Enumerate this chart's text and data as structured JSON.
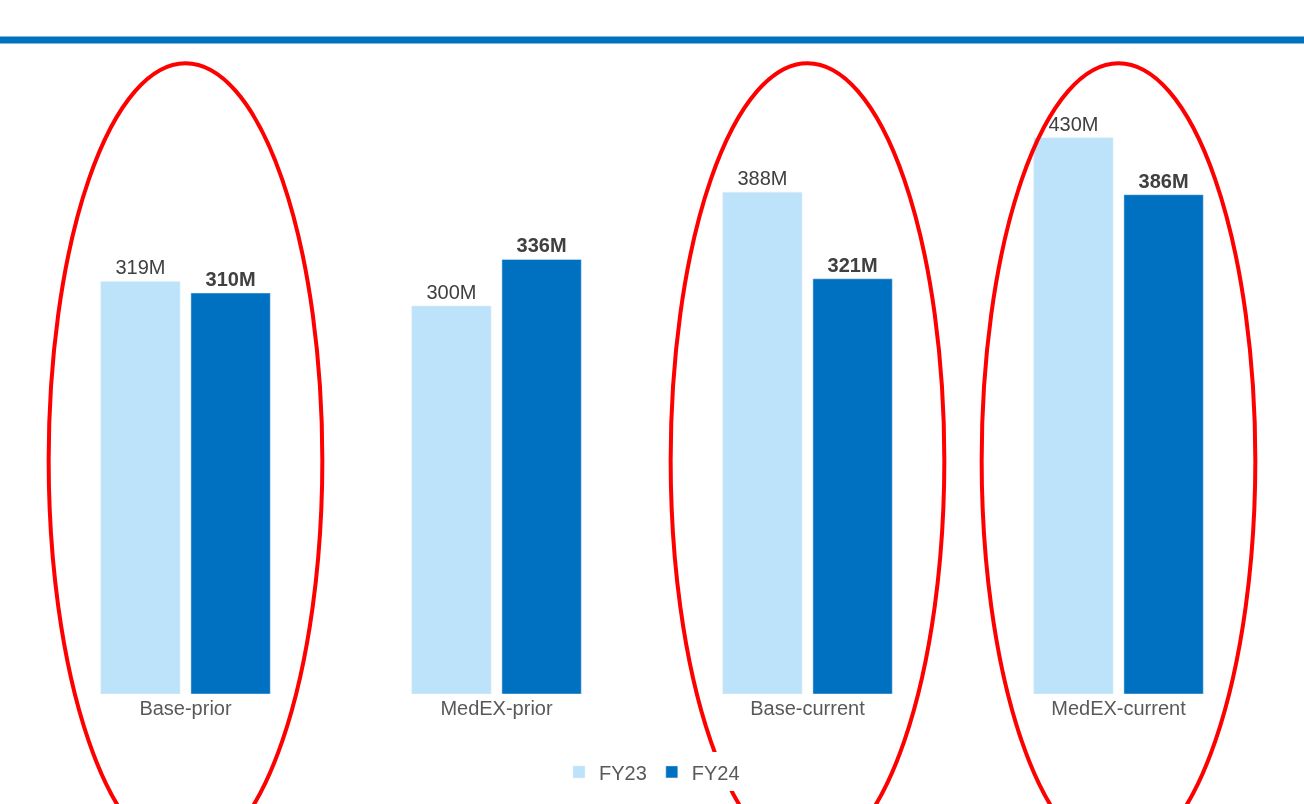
{
  "chart_data": {
    "type": "bar",
    "categories": [
      "Base-prior",
      "MedEX-prior",
      "Base-current",
      "MedEX-current"
    ],
    "series": [
      {
        "name": "FY23",
        "color": "#bde3fb",
        "values": [
          319,
          300,
          388,
          430
        ],
        "value_labels": [
          "319M",
          "300M",
          "388M",
          "430M"
        ]
      },
      {
        "name": "FY24",
        "color": "#0070c0",
        "values": [
          310,
          336,
          321,
          386
        ],
        "value_labels": [
          "310M",
          "336M",
          "321M",
          "386M"
        ]
      }
    ],
    "legend": "bottom"
  }
}
